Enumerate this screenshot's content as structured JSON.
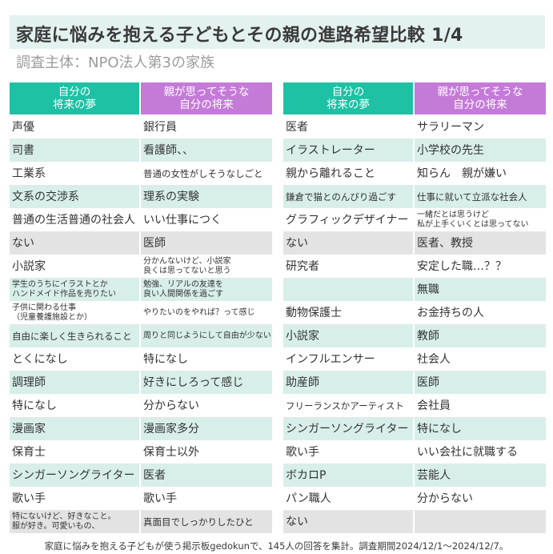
{
  "title": "家庭に悩みを抱える子どもとその親の進路希望比較 1/4",
  "subtitle": "調査主体：NPO法人第3の家族",
  "colors": {
    "header_self": "#1ec1a4",
    "header_parent": "#c47bd8",
    "row_highlight": "#d8efe9",
    "cell_gray": "#e3e3e3"
  },
  "headers": {
    "self": "自分の\n将来の夢",
    "parent": "親が思ってそうな\n自分の将来"
  },
  "left_rows": [
    {
      "dream": "声優",
      "parent": "銀行員"
    },
    {
      "dream": "司書",
      "parent": "看護師、、"
    },
    {
      "dream": "工業系",
      "parent": "普通の女性がしそうなしごと"
    },
    {
      "dream": "文系の交渉系",
      "parent": "理系の実験"
    },
    {
      "dream": "普通の生活普通の社会人",
      "parent": "いい仕事につく"
    },
    {
      "dream": "ない",
      "parent": "医師"
    },
    {
      "dream": "小説家",
      "parent": "分かんないけど、小説家\n良くは思ってないと思う"
    },
    {
      "dream": "学生のうちにイラストとか\nハンドメイド作品を売りたい",
      "parent": "勉強、リアルの友達を\n良い人間関係を過ごす"
    },
    {
      "dream": "子供に関わる仕事\n（児童養護施設とか）",
      "parent": "やりたいのをやれば？って感じ"
    },
    {
      "dream": "自由に楽しく生きられること",
      "parent": "周りと同じようにして自由が少ない"
    },
    {
      "dream": "とくになし",
      "parent": "特になし"
    },
    {
      "dream": "調理師",
      "parent": "好きにしろって感じ"
    },
    {
      "dream": "特になし",
      "parent": "分からない"
    },
    {
      "dream": "漫画家",
      "parent": "漫画家多分"
    },
    {
      "dream": "保育士",
      "parent": "保育士以外"
    },
    {
      "dream": "シンガーソングライター",
      "parent": "医者"
    },
    {
      "dream": "歌い手",
      "parent": "歌い手"
    },
    {
      "dream": "特にないけど、好きなこと。\n服が好き。可愛いもの、",
      "parent": "真面目でしっかりしたひと"
    }
  ],
  "right_rows": [
    {
      "dream": "医者",
      "parent": "サラリーマン"
    },
    {
      "dream": "イラストレーター",
      "parent": "小学校の先生"
    },
    {
      "dream": "親から離れること",
      "parent": "知らん　親が嫌い"
    },
    {
      "dream": "鎌倉で猫とのんびり過ごす",
      "parent": "仕事に就いて立派な社会人"
    },
    {
      "dream": "グラフィックデザイナー",
      "parent": "一緒だとは思うけど\n私が上手くいくとは思ってない"
    },
    {
      "dream": "ない",
      "parent": "医者、教授"
    },
    {
      "dream": "研究者",
      "parent": "安定した職…？？"
    },
    {
      "dream": "",
      "parent": "無職"
    },
    {
      "dream": "動物保護士",
      "parent": "お金持ちの人"
    },
    {
      "dream": "小説家",
      "parent": "教師"
    },
    {
      "dream": "インフルエンサー",
      "parent": "社会人"
    },
    {
      "dream": "助産師",
      "parent": "医師"
    },
    {
      "dream": "フリーランスかアーティスト",
      "parent": "会社員"
    },
    {
      "dream": "シンガーソングライター",
      "parent": "特になし"
    },
    {
      "dream": "歌い手",
      "parent": "いい会社に就職する"
    },
    {
      "dream": "ボカロP",
      "parent": "芸能人"
    },
    {
      "dream": "パン職人",
      "parent": "分からない"
    },
    {
      "dream": "ない",
      "parent": ""
    }
  ],
  "footnote": "家庭に悩みを抱える子どもが使う掲示板gedokunで、145人の回答を集計。調査期間2024/12/1～2024/12/7。"
}
